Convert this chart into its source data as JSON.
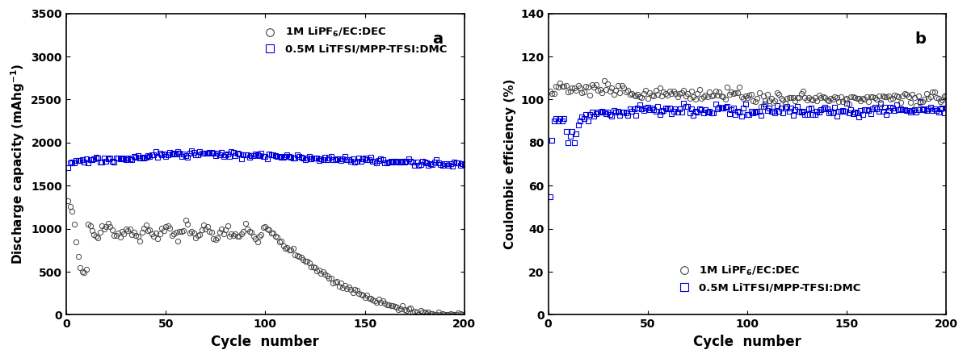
{
  "fig_width": 11.97,
  "fig_height": 4.44,
  "dpi": 100,
  "background_color": "#ffffff",
  "panel_a": {
    "label": "a",
    "xlabel": "Cycle  number",
    "ylabel": "Discharge capacity (mAhg$^{-1}$)",
    "xlim": [
      0,
      200
    ],
    "ylim": [
      0,
      3500
    ],
    "yticks": [
      0,
      500,
      1000,
      1500,
      2000,
      2500,
      3000,
      3500
    ],
    "xticks": [
      0,
      50,
      100,
      150,
      200
    ],
    "series1_color": "#444444",
    "series1_marker": "o",
    "series1_markersize": 4.5,
    "series1_label": "1M LiPF$_6$/EC:DEC",
    "series2_color": "#0000dd",
    "series2_marker": "s",
    "series2_markersize": 4.5,
    "series2_label": "0.5M LiTFSI/MPP-TFSI:DMC"
  },
  "panel_b": {
    "label": "b",
    "xlabel": "Cycle  number",
    "ylabel": "Coulombic efficiency (%)",
    "xlim": [
      0,
      200
    ],
    "ylim": [
      0,
      140
    ],
    "yticks": [
      0,
      20,
      40,
      60,
      80,
      100,
      120,
      140
    ],
    "xticks": [
      0,
      50,
      100,
      150,
      200
    ],
    "series1_color": "#444444",
    "series1_marker": "o",
    "series1_markersize": 4.5,
    "series1_label": "1M LiPF$_6$/EC:DEC",
    "series2_color": "#0000dd",
    "series2_marker": "s",
    "series2_markersize": 4.5,
    "series2_label": "0.5M LiTFSI/MPP-TFSI:DMC"
  }
}
